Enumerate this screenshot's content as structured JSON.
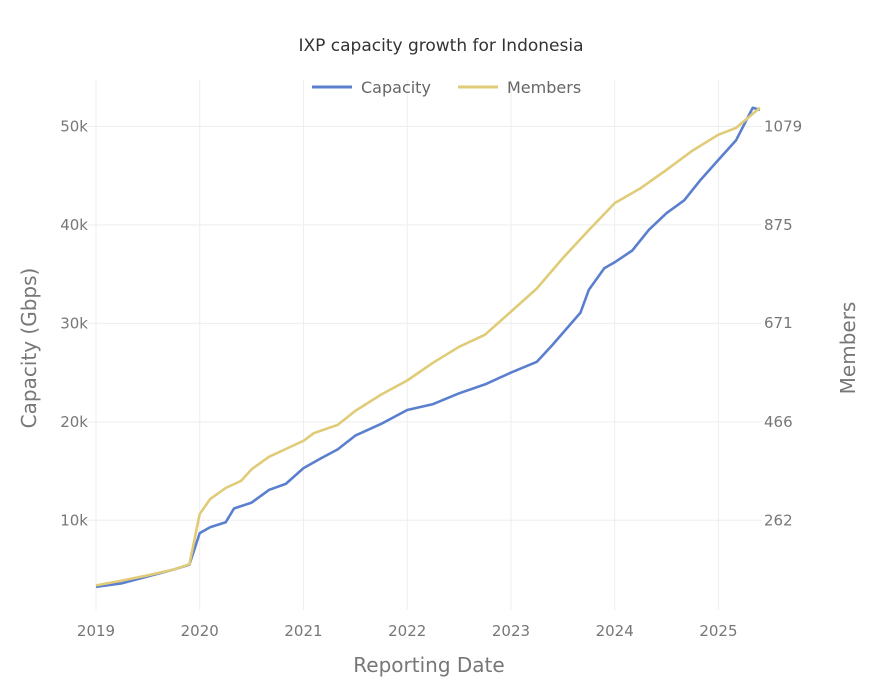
{
  "chart_data": {
    "type": "line",
    "title": "IXP capacity growth for Indonesia",
    "xlabel": "Reporting Date",
    "ylabel": "Capacity (Gbps)",
    "y2label": "Members",
    "xlim": [
      2019,
      2025.42
    ],
    "ylim": [
      1500,
      53500
    ],
    "x_ticks": [
      "2019",
      "2020",
      "2021",
      "2022",
      "2023",
      "2024",
      "2025"
    ],
    "y_ticks": [
      {
        "v": 10000,
        "label": "10k"
      },
      {
        "v": 20000,
        "label": "20k"
      },
      {
        "v": 30000,
        "label": "30k"
      },
      {
        "v": 40000,
        "label": "40k"
      },
      {
        "v": 50000,
        "label": "50k"
      }
    ],
    "y2_ticks": [
      {
        "v": 262,
        "label": "262"
      },
      {
        "v": 466,
        "label": "466"
      },
      {
        "v": 671,
        "label": "671"
      },
      {
        "v": 875,
        "label": "875"
      },
      {
        "v": 1079,
        "label": "1079"
      }
    ],
    "grid": true,
    "legend_position": "top-center",
    "series": [
      {
        "name": "Capacity",
        "axis": "left",
        "color": "#5b7fcf",
        "x": [
          2019.0,
          2019.25,
          2019.5,
          2019.75,
          2019.9,
          2020.0,
          2020.1,
          2020.25,
          2020.33,
          2020.5,
          2020.67,
          2020.83,
          2021.0,
          2021.17,
          2021.33,
          2021.5,
          2021.75,
          2022.0,
          2022.25,
          2022.5,
          2022.75,
          2023.0,
          2023.25,
          2023.4,
          2023.67,
          2023.75,
          2023.9,
          2024.0,
          2024.17,
          2024.33,
          2024.5,
          2024.67,
          2024.83,
          2025.0,
          2025.17,
          2025.33,
          2025.4
        ],
        "y": [
          3250,
          3600,
          4300,
          5000,
          5500,
          8700,
          9300,
          9800,
          11200,
          11800,
          13100,
          13700,
          15300,
          16300,
          17200,
          18600,
          19800,
          21200,
          21800,
          22900,
          23800,
          25000,
          26100,
          27800,
          31100,
          33400,
          35600,
          36200,
          37400,
          39500,
          41200,
          42500,
          44600,
          46600,
          48600,
          51900,
          51700
        ]
      },
      {
        "name": "Members",
        "axis": "right",
        "color": "#e0cc78",
        "x": [
          2019.0,
          2019.25,
          2019.5,
          2019.75,
          2019.9,
          2020.0,
          2020.1,
          2020.25,
          2020.4,
          2020.5,
          2020.67,
          2020.83,
          2021.0,
          2021.1,
          2021.33,
          2021.5,
          2021.75,
          2022.0,
          2022.25,
          2022.5,
          2022.75,
          2023.0,
          2023.25,
          2023.5,
          2023.75,
          2024.0,
          2024.25,
          2024.5,
          2024.75,
          2025.0,
          2025.17,
          2025.4
        ],
        "y": [
          127,
          137,
          148,
          160,
          171,
          275,
          306,
          329,
          344,
          368,
          394,
          410,
          427,
          443,
          460,
          489,
          523,
          552,
          589,
          622,
          647,
          695,
          743,
          806,
          864,
          920,
          951,
          989,
          1029,
          1062,
          1076,
          1118
        ]
      }
    ]
  }
}
